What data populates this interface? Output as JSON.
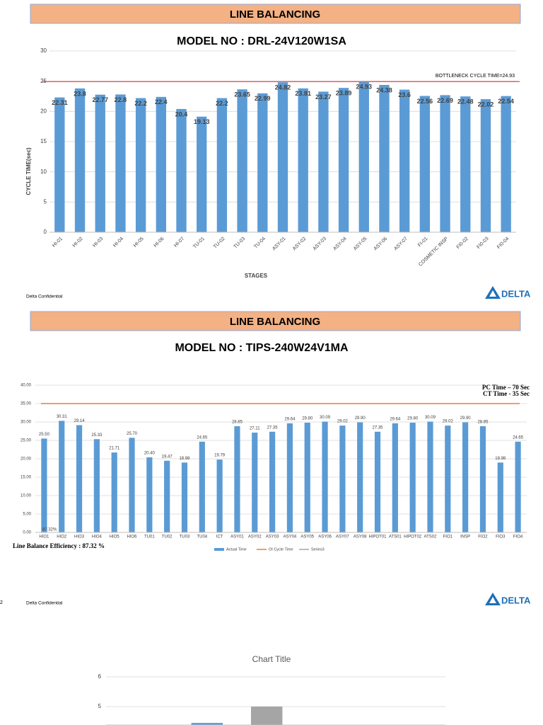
{
  "chart_data": [
    {
      "type": "bar",
      "banner": "LINE BALANCING",
      "title": "MODEL NO : DRL-24V120W1SA",
      "ylabel": "CYCLE TIME(sec)",
      "xlabel": "STAGES",
      "categories": [
        "HI-01",
        "HI-02",
        "HI-03",
        "HI-04",
        "HI-05",
        "HI-06",
        "HI-07",
        "TU-01",
        "TU-02",
        "TU-03",
        "TU-04",
        "ASY-01",
        "ASY-02",
        "ASY-03",
        "ASY-04",
        "ASY-05",
        "ASY-06",
        "ASY-07",
        "FI-01",
        "COSMETIC INSP",
        "FI0-02",
        "FI0-03",
        "FI0-04"
      ],
      "values": [
        22.31,
        23.8,
        22.77,
        22.8,
        22.2,
        22.4,
        20.4,
        19.13,
        22.2,
        23.65,
        22.99,
        24.82,
        23.81,
        23.27,
        23.89,
        24.93,
        24.38,
        23.6,
        22.56,
        22.69,
        22.48,
        22.02,
        22.54
      ],
      "color": "#5b9bd5",
      "ylim": [
        0,
        30
      ],
      "yticks": [
        0,
        5,
        10,
        15,
        20,
        25,
        30
      ],
      "grid": true,
      "reference": {
        "value": 24.93,
        "label": "BOTTLENECK CYCLE TIME=24.93",
        "color": "#e06666"
      },
      "footer": "Delta Confidential",
      "logo": "DELTA"
    },
    {
      "type": "bar",
      "banner": "LINE BALANCING",
      "title": "MODEL NO : TIPS-240W24V1MA",
      "categories": [
        "HIO1",
        "HIO2",
        "HIO3",
        "HIO4",
        "HIO5",
        "HIO6",
        "TU01",
        "TU02",
        "TU03",
        "TU04",
        "ICT",
        "ASY01",
        "ASY02",
        "ASY03",
        "ASY04",
        "ASY05",
        "ASY06",
        "ASY07",
        "ASY08",
        "HIPOT01",
        "ATS01",
        "HIPOT02",
        "ATS02",
        "FIO1",
        "INSP",
        "FIO2",
        "FIO3",
        "FIO4"
      ],
      "series": [
        {
          "name": "Actual Time",
          "color": "#5b9bd5",
          "values": [
            25.5,
            30.31,
            29.14,
            25.33,
            21.71,
            25.7,
            20.4,
            19.47,
            18.98,
            24.65,
            19.79,
            28.85,
            27.11,
            27.35,
            29.64,
            29.8,
            30.09,
            29.02,
            29.9,
            27.35,
            29.64,
            29.8,
            30.09,
            29.02,
            29.9,
            28.85,
            18.98,
            24.65
          ],
          "value_labels": [
            "25.50",
            "30.31",
            "29.14",
            "25.33",
            "21.71",
            "25.70",
            "20.40",
            "19.47",
            "18.98",
            "24.65",
            "19.79",
            "28.85",
            "27.11",
            "27.35",
            "29.64",
            "29.80",
            "30.09",
            "29.02",
            "29.90",
            "27.35",
            "29.64",
            "29.80",
            "30.09",
            "29.02",
            "29.90",
            "28.85",
            "18.98",
            "24.65"
          ]
        },
        {
          "name": "OI Cycle Time",
          "color": "#ed7d31",
          "value": 35
        },
        {
          "name": "Series3",
          "color": "#a5a5a5"
        }
      ],
      "ylim": [
        0,
        40
      ],
      "yticks": [
        {
          "value": 0,
          "label": "0.00"
        },
        {
          "value": 5,
          "label": "5.00"
        },
        {
          "value": 10,
          "label": "10.00"
        },
        {
          "value": 15,
          "label": "15.00"
        },
        {
          "value": 20,
          "label": "20.00"
        },
        {
          "value": 25,
          "label": "25.00"
        },
        {
          "value": 30,
          "label": "30.00"
        },
        {
          "value": 35,
          "label": "35.00"
        },
        {
          "value": 40,
          "label": "40.00"
        }
      ],
      "grid": true,
      "annotations": [
        "PC Time – 70 Sec",
        "CT Time - 35 Sec"
      ],
      "efficiency": "Line Balance Efficiency : 87.32 %",
      "efficiency_label": "87.32%",
      "footer": "Delta Confidential",
      "logo": "DELTA",
      "page_number": 2
    },
    {
      "type": "bar",
      "title": "Chart Title",
      "series": [
        {
          "color": "#5b9bd5",
          "values": [
            4.45
          ]
        },
        {
          "color": "#a5a5a5",
          "values": [
            5
          ]
        }
      ],
      "ylim": [
        4.38,
        6
      ],
      "yticks": [
        5,
        6
      ],
      "grid": true
    }
  ]
}
